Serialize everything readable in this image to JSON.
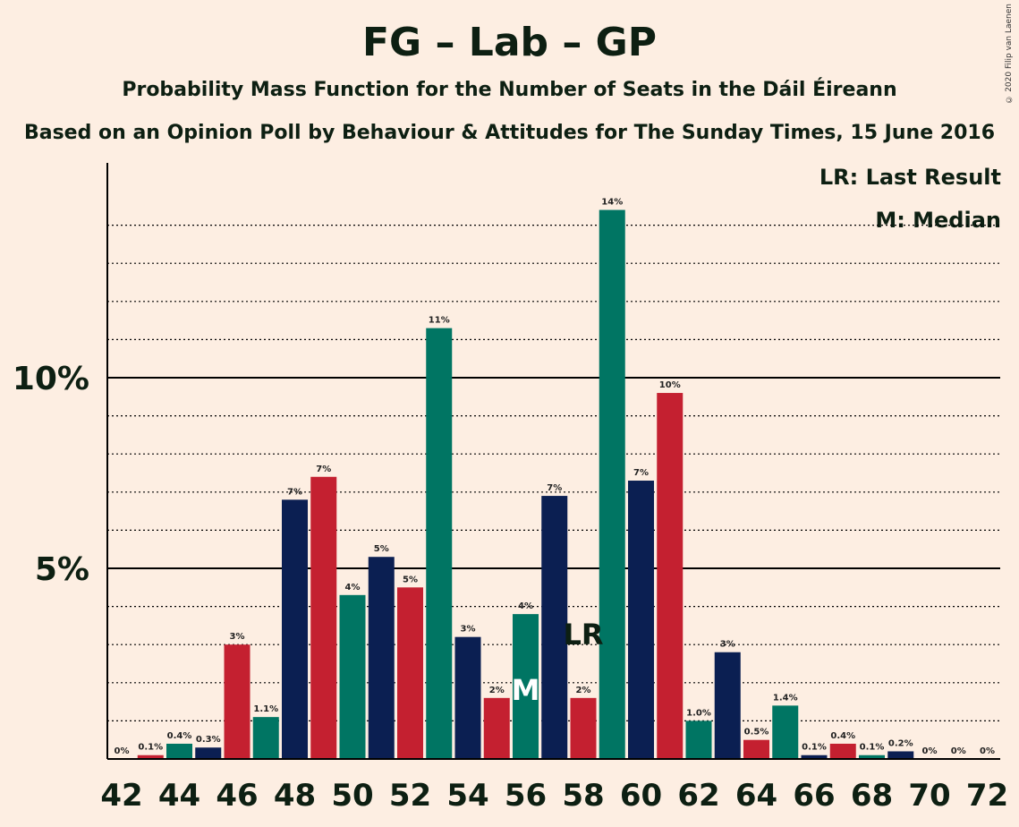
{
  "title": "FG – Lab – GP",
  "subtitle": "Probability Mass Function for the Number of Seats in the Dáil Éireann",
  "subtitle2": "Based on an Opinion Poll by Behaviour & Attitudes for The Sunday Times, 15 June 2016",
  "copyright": "© 2020 Filip van Laenen",
  "legend": {
    "lr": "LR: Last Result",
    "m": "M: Median"
  },
  "colors": {
    "background": "#FDEEE2",
    "navy": "#0B1F52",
    "red": "#C42030",
    "green": "#007563",
    "axis": "#000000"
  },
  "chart_data": {
    "type": "bar",
    "x": [
      42,
      43,
      44,
      45,
      46,
      47,
      48,
      49,
      50,
      51,
      52,
      53,
      54,
      55,
      56,
      57,
      58,
      59,
      60,
      61,
      62,
      63,
      64,
      65,
      66,
      67,
      68,
      69,
      70,
      71,
      72
    ],
    "values": [
      0,
      0.1,
      0.4,
      0.3,
      3.0,
      1.1,
      6.8,
      7.4,
      4.3,
      5.3,
      4.5,
      11.3,
      3.2,
      1.6,
      3.8,
      6.9,
      1.6,
      14.4,
      7.3,
      9.6,
      1.0,
      2.8,
      0.5,
      1.4,
      0.1,
      0.4,
      0.1,
      0.2,
      0,
      0,
      0
    ],
    "labels": [
      "0%",
      "0.1%",
      "0.4%",
      "0.3%",
      "3%",
      "1.1%",
      "7%",
      "7%",
      "4%",
      "5%",
      "5%",
      "11%",
      "3%",
      "2%",
      "4%",
      "7%",
      "2%",
      "14%",
      "7%",
      "10%",
      "1.0%",
      "3%",
      "0.5%",
      "1.4%",
      "0.1%",
      "0.4%",
      "0.1%",
      "0.2%",
      "0%",
      "0%",
      "0%"
    ],
    "colors": [
      "navy",
      "red",
      "green",
      "navy",
      "red",
      "green",
      "navy",
      "red",
      "green",
      "navy",
      "red",
      "green",
      "navy",
      "red",
      "green",
      "navy",
      "red",
      "green",
      "navy",
      "red",
      "green",
      "navy",
      "red",
      "green",
      "navy",
      "red",
      "green",
      "navy",
      "red",
      "green",
      "navy"
    ],
    "xticks": [
      "42",
      "44",
      "46",
      "48",
      "50",
      "52",
      "54",
      "56",
      "58",
      "60",
      "62",
      "64",
      "66",
      "68",
      "70",
      "72"
    ],
    "yticks": [
      {
        "value": 5,
        "label": "5%"
      },
      {
        "value": 10,
        "label": "10%"
      }
    ],
    "ylim": [
      0,
      15.6
    ],
    "minor_grid_step": 1,
    "last_result": {
      "x": 58,
      "label": "LR"
    },
    "median": {
      "x": 56,
      "label": "M"
    }
  }
}
